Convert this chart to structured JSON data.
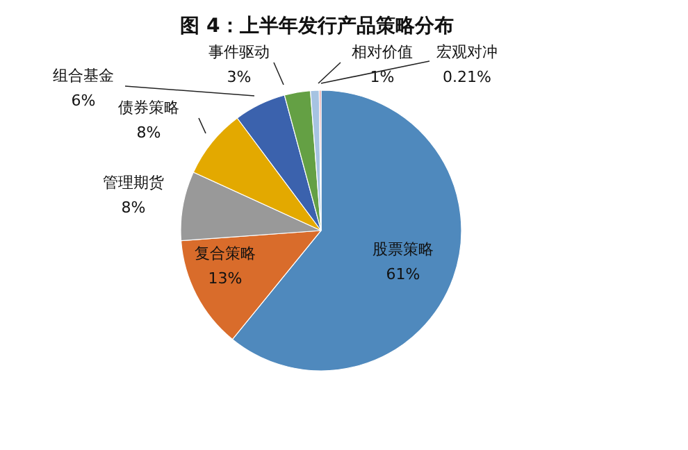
{
  "chart_data": {
    "type": "pie",
    "title": "图 4：上半年发行产品策略分布",
    "categories": [
      "股票策略",
      "复合策略",
      "管理期货",
      "债券策略",
      "组合基金",
      "事件驱动",
      "相对价值",
      "宏观对冲"
    ],
    "values": [
      61,
      13,
      8,
      8,
      6,
      3,
      1,
      0.21
    ],
    "value_labels": [
      "61%",
      "13%",
      "8%",
      "8%",
      "6%",
      "3%",
      "1%",
      "0.21%"
    ],
    "colors": [
      "#4f89bd",
      "#d96c2b",
      "#999999",
      "#e3a900",
      "#3b62ad",
      "#64a044",
      "#a6c3e2",
      "#e8a0a0"
    ]
  }
}
